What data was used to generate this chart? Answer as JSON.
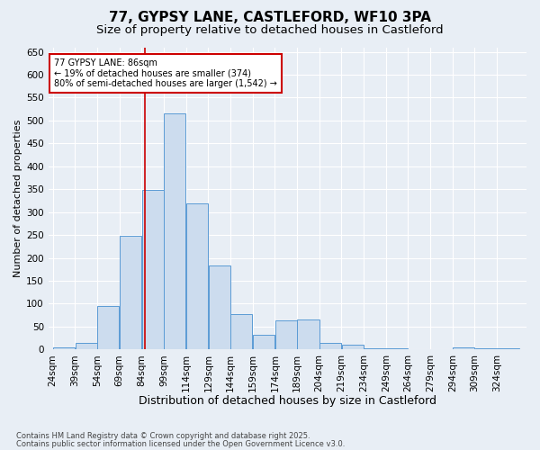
{
  "title1": "77, GYPSY LANE, CASTLEFORD, WF10 3PA",
  "title2": "Size of property relative to detached houses in Castleford",
  "xlabel": "Distribution of detached houses by size in Castleford",
  "ylabel": "Number of detached properties",
  "footnote1": "Contains HM Land Registry data © Crown copyright and database right 2025.",
  "footnote2": "Contains public sector information licensed under the Open Government Licence v3.0.",
  "bin_labels": [
    "24sqm",
    "39sqm",
    "54sqm",
    "69sqm",
    "84sqm",
    "99sqm",
    "114sqm",
    "129sqm",
    "144sqm",
    "159sqm",
    "174sqm",
    "189sqm",
    "204sqm",
    "219sqm",
    "234sqm",
    "249sqm",
    "264sqm",
    "279sqm",
    "294sqm",
    "309sqm",
    "324sqm"
  ],
  "bin_edges": [
    24,
    39,
    54,
    69,
    84,
    99,
    114,
    129,
    144,
    159,
    174,
    189,
    204,
    219,
    234,
    249,
    264,
    279,
    294,
    309,
    324,
    339
  ],
  "bar_heights": [
    5,
    15,
    95,
    248,
    348,
    515,
    320,
    183,
    78,
    33,
    63,
    65,
    15,
    10,
    3,
    2,
    1,
    1,
    5,
    3,
    2
  ],
  "bar_color": "#ccdcee",
  "bar_edge_color": "#5b9bd5",
  "vline_x": 86,
  "vline_color": "#cc0000",
  "annotation_text": "77 GYPSY LANE: 86sqm\n← 19% of detached houses are smaller (374)\n80% of semi-detached houses are larger (1,542) →",
  "annotation_box_color": "#ffffff",
  "annotation_box_edge": "#cc0000",
  "ylim": [
    0,
    660
  ],
  "yticks": [
    0,
    50,
    100,
    150,
    200,
    250,
    300,
    350,
    400,
    450,
    500,
    550,
    600,
    650
  ],
  "background_color": "#e8eef5",
  "plot_background": "#e8eef5",
  "title_fontsize": 11,
  "subtitle_fontsize": 9.5,
  "tick_fontsize": 7.5,
  "xlabel_fontsize": 9,
  "ylabel_fontsize": 8,
  "annotation_fontsize": 7,
  "footnote_fontsize": 6
}
